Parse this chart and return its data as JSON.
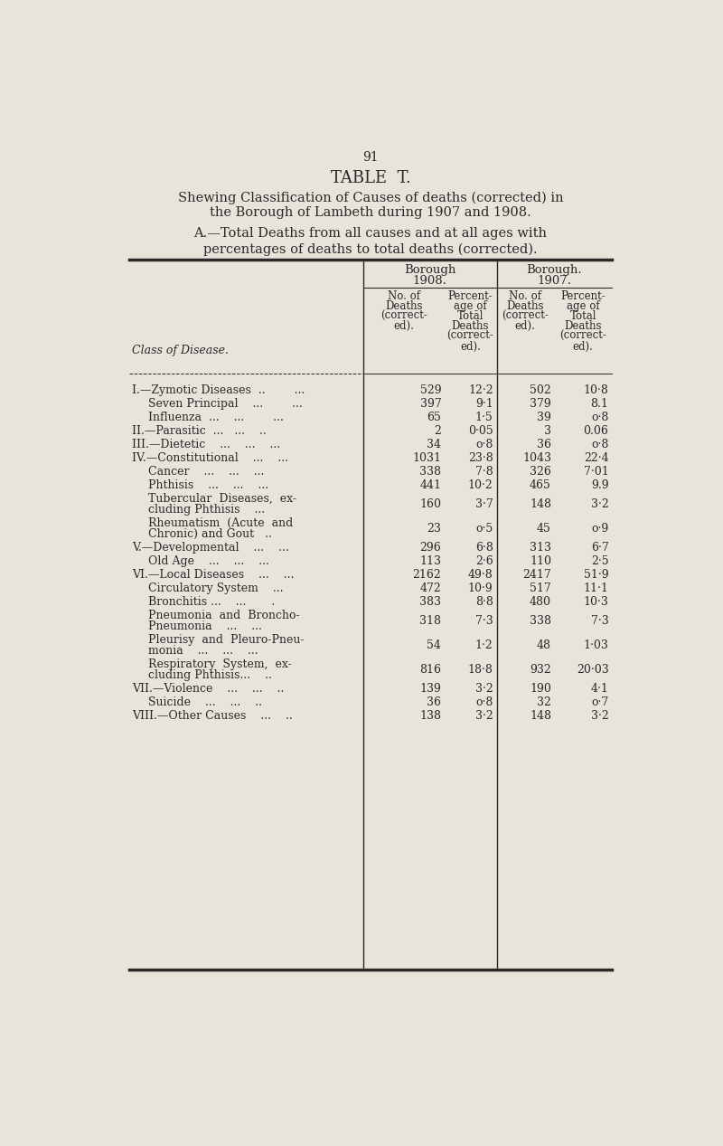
{
  "page_number": "91",
  "title": "TABLE  T.",
  "subtitle1": "Shewing Classification of Causes of deaths (corrected) in",
  "subtitle2": "the Borough of Lambeth during 1907 and 1908.",
  "section_header": "A.—Total Deaths from all causes and at all ages with",
  "section_header2": "percentages of deaths to total deaths (corrected).",
  "row_label_header": "Class of Disease.",
  "col_h1a": "Borough",
  "col_h1b": "1908.",
  "col_h2a": "Borough.",
  "col_h2b": "1907.",
  "sub_col1": [
    "No. of",
    "Deaths",
    "(correct-",
    "ed)."
  ],
  "sub_col2": [
    "Percent-",
    "age of",
    "Totāl",
    "Deaths",
    "(correct-",
    "ed)."
  ],
  "sub_col3": [
    "No. of",
    "Deaths",
    "(correct-",
    "ed)."
  ],
  "sub_col4": [
    "Percent-",
    "age of",
    "Total",
    "Deaths",
    "(correct-",
    "ed)."
  ],
  "rows": [
    {
      "label": "I.—Zymotic Diseases  ..        ...",
      "indent": 0,
      "multiline": false,
      "d1908": "529",
      "p1908": "12·2",
      "d1907": "502",
      "p1907": "10·8"
    },
    {
      "label": "Seven Principal    ...        ...",
      "indent": 1,
      "multiline": false,
      "d1908": "397",
      "p1908": "9·1",
      "d1907": "379",
      "p1907": "8.1"
    },
    {
      "label": "Influenza  ...    ...        ...",
      "indent": 1,
      "multiline": false,
      "d1908": "65",
      "p1908": "1·5",
      "d1907": "39",
      "p1907": "o·8"
    },
    {
      "label": "II.—Parasitic  ...   ...    ..",
      "indent": 0,
      "multiline": false,
      "d1908": "2",
      "p1908": "0·05",
      "d1907": "3",
      "p1907": "0.06"
    },
    {
      "label": "III.—Dietetic    ...    ...    ...",
      "indent": 0,
      "multiline": false,
      "d1908": "34",
      "p1908": "o·8",
      "d1907": "36",
      "p1907": "o·8"
    },
    {
      "label": "IV.—Constitutional    ...    ...",
      "indent": 0,
      "multiline": false,
      "d1908": "1031",
      "p1908": "23·8",
      "d1907": "1043",
      "p1907": "22·4"
    },
    {
      "label": "Cancer    ...    ...    ...",
      "indent": 1,
      "multiline": false,
      "d1908": "338",
      "p1908": "7·8",
      "d1907": "326",
      "p1907": "7·01"
    },
    {
      "label": "Phthisis    ...    ...    ...",
      "indent": 1,
      "multiline": false,
      "d1908": "441",
      "p1908": "10·2",
      "d1907": "465",
      "p1907": "9.9"
    },
    {
      "label1": "Tubercular  Diseases,  ex-",
      "label2": "    cluding Phthisis    ...",
      "indent": 1,
      "multiline": true,
      "d1908": "160",
      "p1908": "3·7",
      "d1907": "148",
      "p1907": "3·2"
    },
    {
      "label1": "Rheumatism  (Acute  and",
      "label2": "    Chronic) and Gout   ..",
      "indent": 1,
      "multiline": true,
      "d1908": "23",
      "p1908": "o·5",
      "d1907": "45",
      "p1907": "o·9"
    },
    {
      "label": "V.—Developmental    ...    ...",
      "indent": 0,
      "multiline": false,
      "d1908": "296",
      "p1908": "6·8",
      "d1907": "313",
      "p1907": "6·7"
    },
    {
      "label": "Old Age    ...    ...    ...",
      "indent": 1,
      "multiline": false,
      "d1908": "113",
      "p1908": "2·6",
      "d1907": "110",
      "p1907": "2·5"
    },
    {
      "label": "VI.—Local Diseases    ...    ...",
      "indent": 0,
      "multiline": false,
      "d1908": "2162",
      "p1908": "49·8",
      "d1907": "2417",
      "p1907": "51·9"
    },
    {
      "label": "Circulatory System    ...",
      "indent": 1,
      "multiline": false,
      "d1908": "472",
      "p1908": "10·9",
      "d1907": "517",
      "p1907": "11·1"
    },
    {
      "label": "Bronchitis ...    ...       .",
      "indent": 1,
      "multiline": false,
      "d1908": "383",
      "p1908": "8·8",
      "d1907": "480",
      "p1907": "10·3"
    },
    {
      "label1": "Pneumonia  and  Broncho-",
      "label2": "    Pneumonia    ...    ...",
      "indent": 1,
      "multiline": true,
      "d1908": "318",
      "p1908": "7·3",
      "d1907": "338",
      "p1907": "7·3"
    },
    {
      "label1": "Pleurisy  and  Pleuro-Pneu-",
      "label2": "    monia    ...    ...    ...",
      "indent": 1,
      "multiline": true,
      "d1908": "54",
      "p1908": "1·2",
      "d1907": "48",
      "p1907": "1·03"
    },
    {
      "label1": "Respiratory  System,  ex-",
      "label2": "    cluding Phthisis...    ..",
      "indent": 1,
      "multiline": true,
      "d1908": "816",
      "p1908": "18·8",
      "d1907": "932",
      "p1907": "20·03"
    },
    {
      "label": "VII.—Violence    ...    ...    ..",
      "indent": 0,
      "multiline": false,
      "d1908": "139",
      "p1908": "3·2",
      "d1907": "190",
      "p1907": "4·1"
    },
    {
      "label": "Suicide    ...    ...    ..",
      "indent": 1,
      "multiline": false,
      "d1908": "36",
      "p1908": "o·8",
      "d1907": "32",
      "p1907": "o·7"
    },
    {
      "label": "VIII.—Other Causes    ...    ..",
      "indent": 0,
      "multiline": false,
      "d1908": "138",
      "p1908": "3·2",
      "d1907": "148",
      "p1907": "3·2"
    }
  ],
  "bg_color": "#e8e4dc",
  "text_color": "#2a2a2a",
  "line_color": "#2a2a2a"
}
